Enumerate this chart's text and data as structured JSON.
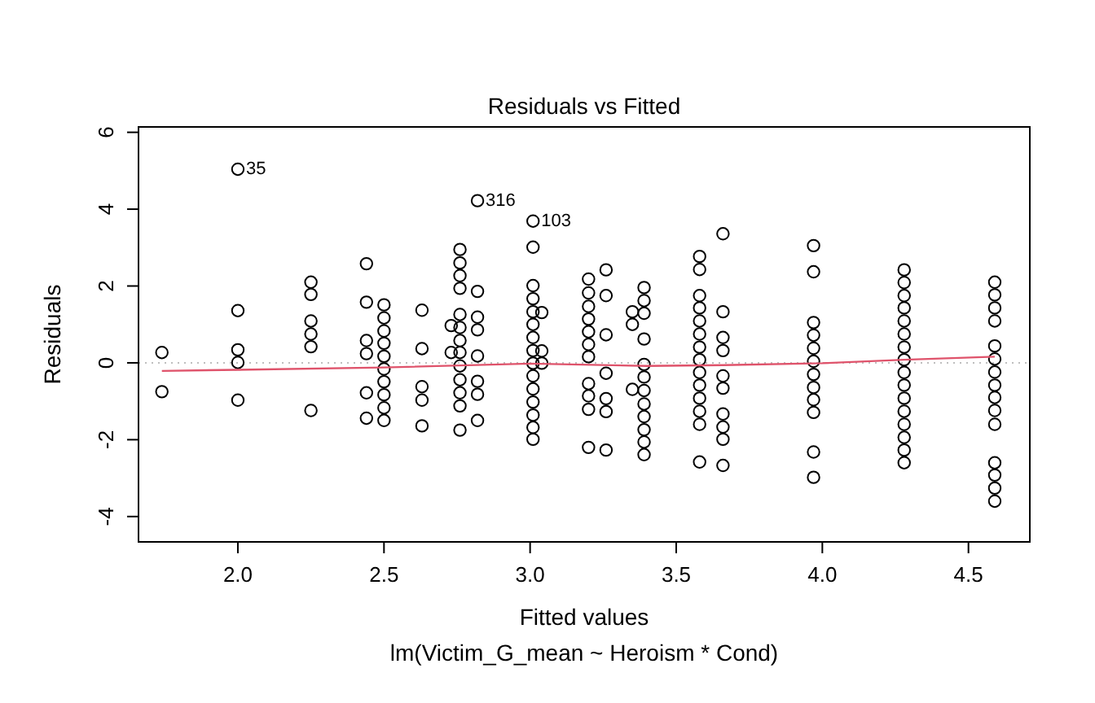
{
  "chart_data": {
    "type": "scatter",
    "title": "Residuals vs Fitted",
    "xlabel": "Fitted values",
    "subtitle": "lm(Victim_G_mean ~ Heroism * Cond)",
    "ylabel": "Residuals",
    "xlim": [
      1.66,
      4.71
    ],
    "ylim": [
      -4.66,
      6.14
    ],
    "xticks": [
      {
        "value": 2,
        "label": "2.0"
      },
      {
        "value": 2.5,
        "label": "2.5"
      },
      {
        "value": 3,
        "label": "3.0"
      },
      {
        "value": 3.5,
        "label": "3.5"
      },
      {
        "value": 4,
        "label": "4.0"
      },
      {
        "value": 4.5,
        "label": "4.5"
      }
    ],
    "yticks": [
      -4,
      -2,
      0,
      2,
      4,
      6
    ],
    "grid": false,
    "ref_lines": [
      {
        "axis": "y",
        "value": 0,
        "color": "#bebebe",
        "line_style": "dotted"
      }
    ],
    "annotations": [
      {
        "text": "35",
        "x": 2.0,
        "y": 5.04
      },
      {
        "text": "316",
        "x": 2.82,
        "y": 4.22
      },
      {
        "text": "103",
        "x": 3.01,
        "y": 3.69
      }
    ],
    "series": [
      {
        "color": "#000000",
        "marker": "circle",
        "x": [
          1.74,
          1.74,
          2.0,
          2.0,
          2.0,
          2.0,
          2.0,
          2.25,
          2.25,
          2.25,
          2.25,
          2.25,
          2.25,
          2.44,
          2.44,
          2.44,
          2.44,
          2.44,
          2.44,
          2.5,
          2.5,
          2.5,
          2.5,
          2.5,
          2.5,
          2.5,
          2.5,
          2.5,
          2.5,
          2.63,
          2.63,
          2.63,
          2.63,
          2.63,
          2.73,
          2.73,
          2.76,
          2.76,
          2.76,
          2.76,
          2.76,
          2.76,
          2.76,
          2.76,
          2.76,
          2.76,
          2.76,
          2.76,
          2.76,
          2.82,
          2.82,
          2.82,
          2.82,
          2.82,
          2.82,
          2.82,
          2.82,
          3.01,
          3.01,
          3.01,
          3.01,
          3.01,
          3.01,
          3.01,
          3.01,
          3.01,
          3.01,
          3.01,
          3.01,
          3.01,
          3.01,
          3.01,
          3.04,
          3.04,
          3.04,
          3.2,
          3.2,
          3.2,
          3.2,
          3.2,
          3.2,
          3.2,
          3.2,
          3.2,
          3.2,
          3.2,
          3.26,
          3.26,
          3.26,
          3.26,
          3.26,
          3.26,
          3.26,
          3.35,
          3.35,
          3.35,
          3.39,
          3.39,
          3.39,
          3.39,
          3.39,
          3.39,
          3.39,
          3.39,
          3.39,
          3.39,
          3.39,
          3.39,
          3.58,
          3.58,
          3.58,
          3.58,
          3.58,
          3.58,
          3.58,
          3.58,
          3.58,
          3.58,
          3.58,
          3.58,
          3.58,
          3.58,
          3.66,
          3.66,
          3.66,
          3.66,
          3.66,
          3.66,
          3.66,
          3.66,
          3.66,
          3.66,
          3.97,
          3.97,
          3.97,
          3.97,
          3.97,
          3.97,
          3.97,
          3.97,
          3.97,
          3.97,
          3.97,
          3.97,
          4.28,
          4.28,
          4.28,
          4.28,
          4.28,
          4.28,
          4.28,
          4.28,
          4.28,
          4.28,
          4.28,
          4.28,
          4.28,
          4.28,
          4.28,
          4.28,
          4.59,
          4.59,
          4.59,
          4.59,
          4.59,
          4.59,
          4.59,
          4.59,
          4.59,
          4.59,
          4.59,
          4.59,
          4.59,
          4.59,
          4.59
        ],
        "values": [
          0.27,
          -0.75,
          5.04,
          1.36,
          0.34,
          0.01,
          -0.97,
          2.1,
          1.78,
          1.09,
          0.75,
          0.42,
          -1.24,
          2.58,
          1.58,
          0.58,
          0.24,
          -0.78,
          -1.44,
          1.51,
          1.17,
          0.83,
          0.51,
          0.17,
          -0.16,
          -0.49,
          -0.83,
          -1.17,
          -1.5,
          1.37,
          0.37,
          -0.62,
          -0.97,
          -1.64,
          0.97,
          0.27,
          2.95,
          2.6,
          2.27,
          1.94,
          1.26,
          0.92,
          0.58,
          0.27,
          -0.08,
          -0.44,
          -0.78,
          -1.12,
          -1.75,
          4.22,
          1.86,
          1.19,
          0.86,
          0.18,
          -0.48,
          -0.82,
          -1.5,
          3.69,
          3.01,
          2.01,
          1.67,
          1.33,
          1.0,
          0.66,
          0.32,
          -0.01,
          -0.34,
          -0.68,
          -1.02,
          -1.36,
          -1.68,
          -1.99,
          1.31,
          0.31,
          -0.01,
          2.18,
          1.82,
          1.47,
          1.14,
          0.81,
          0.48,
          0.16,
          -0.54,
          -0.86,
          -1.21,
          -2.2,
          2.42,
          1.75,
          0.73,
          -0.27,
          -0.93,
          -1.27,
          -2.27,
          1.33,
          1.0,
          -0.69,
          1.96,
          1.62,
          1.29,
          0.62,
          -0.04,
          -0.37,
          -0.72,
          -1.07,
          -1.4,
          -1.74,
          -2.06,
          -2.39,
          2.77,
          2.43,
          1.75,
          1.43,
          1.09,
          0.75,
          0.41,
          0.08,
          -0.25,
          -0.58,
          -0.92,
          -1.26,
          -1.6,
          -2.58,
          3.36,
          1.33,
          0.66,
          0.32,
          -0.34,
          -0.66,
          -1.33,
          -1.67,
          -1.99,
          -2.67,
          3.05,
          2.37,
          1.05,
          0.72,
          0.38,
          0.04,
          -0.3,
          -0.64,
          -0.96,
          -1.29,
          -2.32,
          -2.98,
          2.42,
          2.09,
          1.75,
          1.43,
          1.09,
          0.75,
          0.41,
          0.08,
          -0.25,
          -0.58,
          -0.92,
          -1.26,
          -1.6,
          -1.94,
          -2.27,
          -2.6,
          2.1,
          1.77,
          1.43,
          1.09,
          0.44,
          0.1,
          -0.24,
          -0.58,
          -0.9,
          -1.24,
          -1.6,
          -2.6,
          -2.92,
          -3.26,
          -3.6
        ]
      },
      {
        "type": "line",
        "color": "#df536b",
        "line_style": "solid",
        "x": [
          1.74,
          2.0,
          2.5,
          3.0,
          3.4,
          3.66,
          4.0,
          4.28,
          4.59
        ],
        "values": [
          -0.21,
          -0.18,
          -0.12,
          -0.02,
          -0.08,
          -0.06,
          -0.01,
          0.08,
          0.16
        ]
      }
    ]
  }
}
